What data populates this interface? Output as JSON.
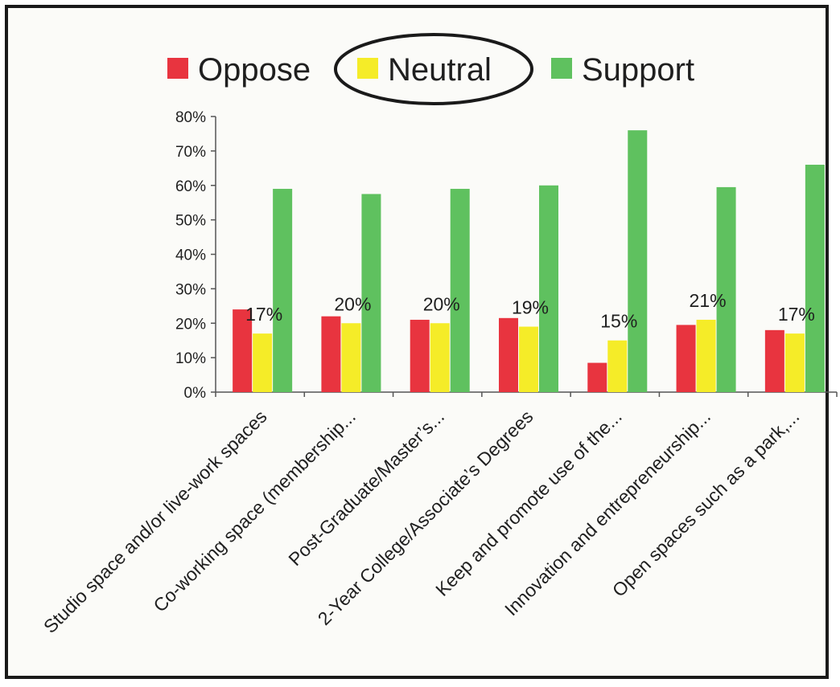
{
  "chart_data": {
    "type": "bar",
    "title": "",
    "xlabel": "",
    "ylabel": "",
    "ylim": [
      0,
      0.8
    ],
    "y_ticks": [
      "0%",
      "10%",
      "20%",
      "30%",
      "40%",
      "50%",
      "60%",
      "70%",
      "80%"
    ],
    "categories": [
      "Studio space and/or live-work spaces",
      "Co-working space (membership...",
      "Post-Graduate/Master’s...",
      "2-Year College/Associate’s Degrees",
      "Keep and promote use of the...",
      "Innovation and entrepreneurship...",
      "Open spaces such as a park,..."
    ],
    "series": [
      {
        "name": "Oppose",
        "color": "#e8343f",
        "values": [
          0.24,
          0.22,
          0.21,
          0.215,
          0.085,
          0.195,
          0.18
        ]
      },
      {
        "name": "Neutral",
        "color": "#f5ec28",
        "values": [
          0.17,
          0.2,
          0.2,
          0.19,
          0.15,
          0.21,
          0.17
        ]
      },
      {
        "name": "Support",
        "color": "#5fc15f",
        "values": [
          0.59,
          0.575,
          0.59,
          0.6,
          0.76,
          0.595,
          0.66
        ]
      }
    ],
    "data_labels": {
      "series": "Neutral",
      "labels": [
        "17%",
        "20%",
        "20%",
        "19%",
        "15%",
        "21%",
        "17%"
      ]
    },
    "legend_position": "top",
    "highlighted_legend_entry": "Neutral",
    "grid": false
  }
}
